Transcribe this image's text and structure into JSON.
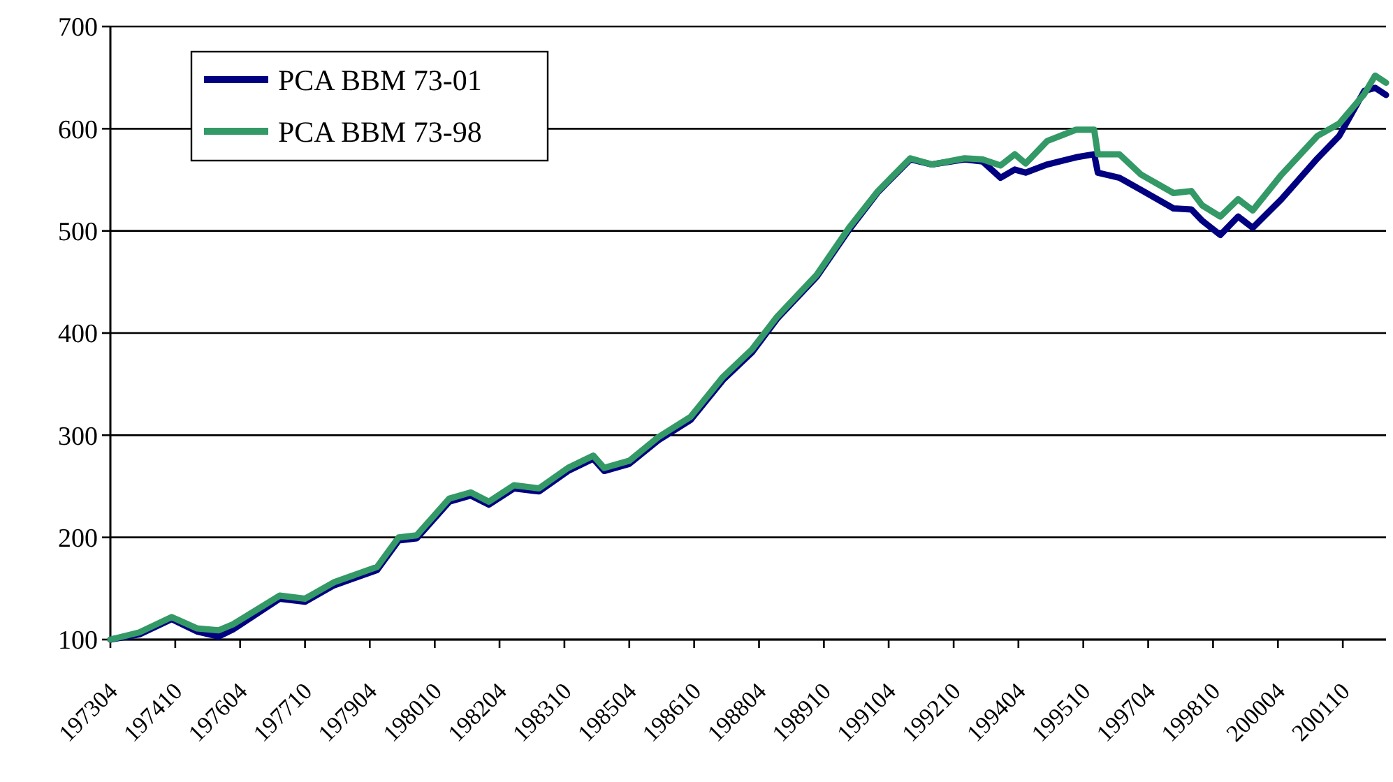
{
  "chart_data": {
    "type": "line",
    "ylim": [
      100,
      700
    ],
    "yticks": [
      100,
      200,
      300,
      400,
      500,
      600,
      700
    ],
    "grid": "y",
    "legend": "top left",
    "line_style": "solid",
    "xlim": [
      "1973-04",
      "2002-10"
    ],
    "xticks": [
      {
        "value": "1973-04",
        "label": "197304"
      },
      {
        "value": "1974-10",
        "label": "197410"
      },
      {
        "value": "1976-04",
        "label": "197604"
      },
      {
        "value": "1977-10",
        "label": "197710"
      },
      {
        "value": "1979-04",
        "label": "197904"
      },
      {
        "value": "1980-10",
        "label": "198010"
      },
      {
        "value": "1982-04",
        "label": "198204"
      },
      {
        "value": "1983-10",
        "label": "198310"
      },
      {
        "value": "1985-04",
        "label": "198504"
      },
      {
        "value": "1986-10",
        "label": "198610"
      },
      {
        "value": "1988-04",
        "label": "198804"
      },
      {
        "value": "1989-10",
        "label": "198910"
      },
      {
        "value": "1991-04",
        "label": "199104"
      },
      {
        "value": "1992-10",
        "label": "199210"
      },
      {
        "value": "1994-04",
        "label": "199404"
      },
      {
        "value": "1995-10",
        "label": "199510"
      },
      {
        "value": "1997-04",
        "label": "199704"
      },
      {
        "value": "1998-10",
        "label": "199810"
      },
      {
        "value": "2000-04",
        "label": "200004"
      },
      {
        "value": "2001-10",
        "label": "200110"
      }
    ],
    "x": [
      "1973-04",
      "1973-12",
      "1974-09",
      "1975-04",
      "1975-10",
      "1976-02",
      "1977-03",
      "1977-10",
      "1978-06",
      "1979-06",
      "1979-12",
      "1980-05",
      "1981-02",
      "1981-08",
      "1982-01",
      "1982-08",
      "1983-03",
      "1983-11",
      "1984-06",
      "1984-09",
      "1985-04",
      "1985-12",
      "1986-09",
      "1987-06",
      "1988-02",
      "1988-09",
      "1989-08",
      "1990-05",
      "1991-01",
      "1991-10",
      "1992-04",
      "1993-01",
      "1993-06",
      "1993-11",
      "1994-03",
      "1994-06",
      "1994-12",
      "1995-08",
      "1996-01",
      "1996-02",
      "1996-08",
      "1997-02",
      "1997-11",
      "1998-04",
      "1998-07",
      "1998-12",
      "1999-05",
      "1999-09",
      "2000-05",
      "2001-03",
      "2001-09",
      "2002-04",
      "2002-07",
      "2002-10"
    ],
    "series": [
      {
        "name": "PCA BBM 73-01",
        "color": "#000080",
        "values": [
          100,
          105,
          120,
          108,
          103,
          110,
          140,
          137,
          153,
          168,
          197,
          199,
          235,
          241,
          232,
          248,
          245,
          265,
          277,
          265,
          272,
          295,
          315,
          354,
          381,
          414,
          455,
          501,
          538,
          570,
          565,
          570,
          568,
          552,
          560,
          557,
          565,
          572,
          575,
          557,
          552,
          540,
          522,
          521,
          510,
          496,
          514,
          503,
          531,
          571,
          593,
          637,
          640,
          633
        ]
      },
      {
        "name": "PCA BBM 73-98",
        "color": "#339966",
        "values": [
          100,
          107,
          122,
          111,
          109,
          115,
          143,
          140,
          156,
          171,
          200,
          202,
          238,
          244,
          235,
          251,
          248,
          268,
          280,
          268,
          275,
          298,
          318,
          357,
          384,
          416,
          457,
          503,
          539,
          571,
          565,
          571,
          570,
          564,
          575,
          566,
          588,
          599,
          599,
          575,
          575,
          555,
          537,
          539,
          525,
          514,
          531,
          520,
          555,
          593,
          605,
          634,
          652,
          645
        ]
      }
    ]
  }
}
